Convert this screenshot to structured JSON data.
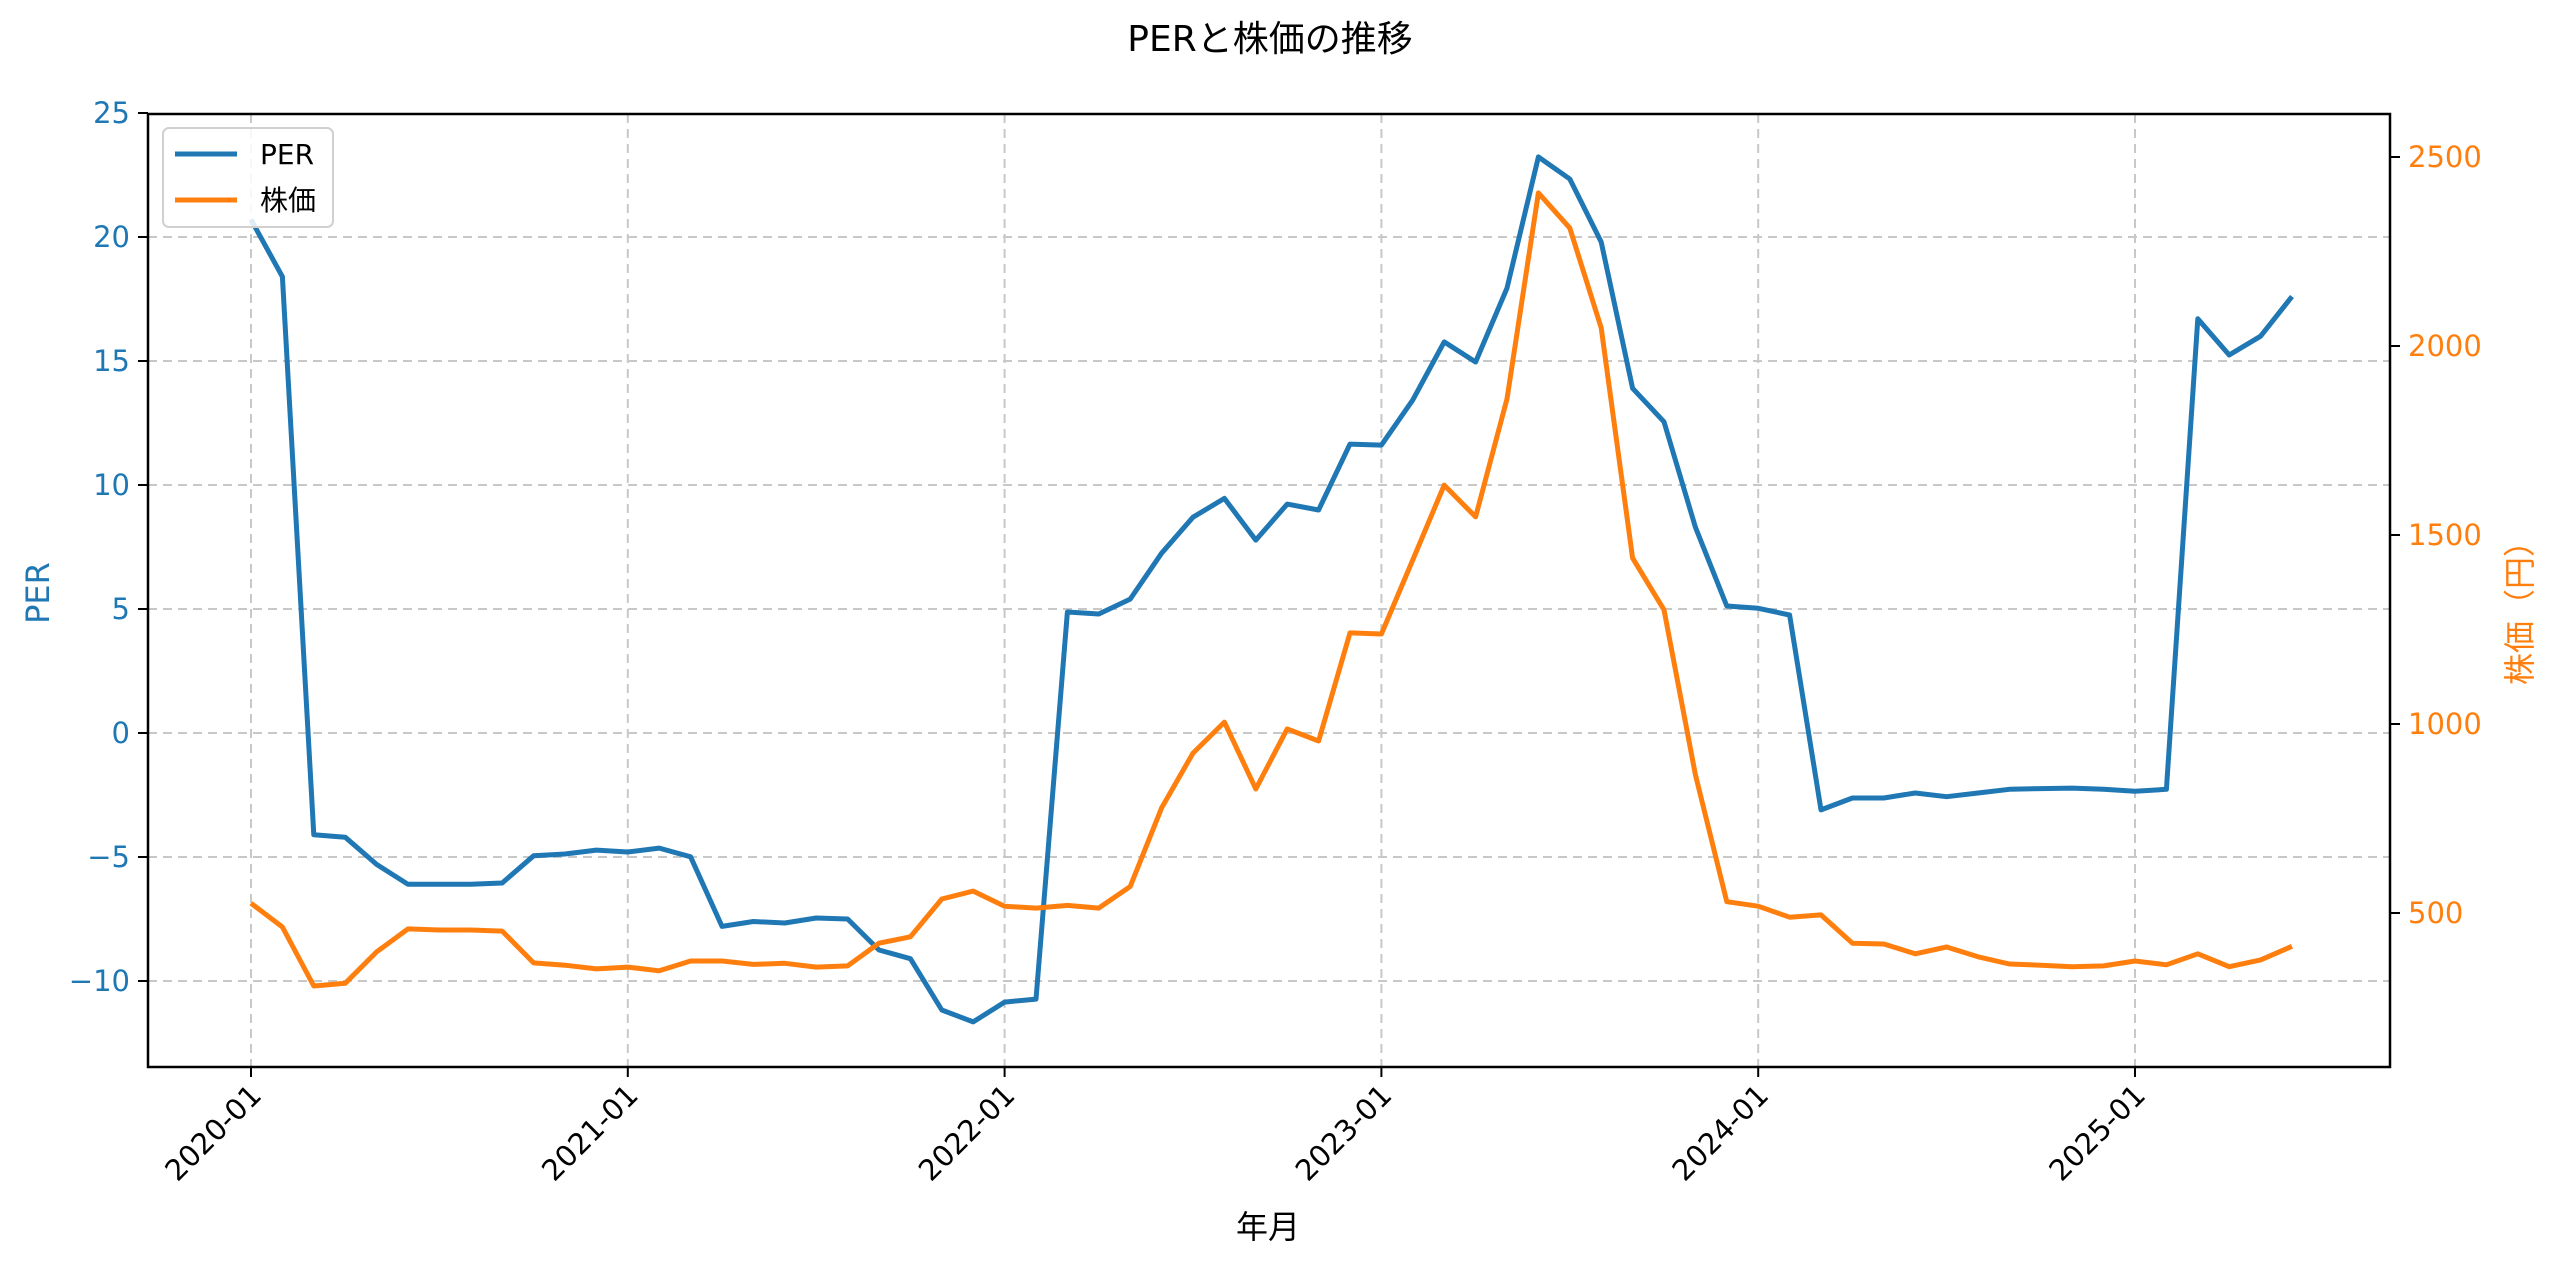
{
  "chart_data": {
    "type": "line",
    "title": "PERと株価の推移",
    "xlabel": "年月",
    "ylabel": "PER",
    "ylabel_right": "株価（円）",
    "x_tick_labels": [
      "2020-01",
      "2021-01",
      "2022-01",
      "2023-01",
      "2024-01",
      "2025-01"
    ],
    "y_ticks_left": [
      -10,
      -5,
      0,
      5,
      10,
      15,
      20,
      25
    ],
    "y_ticks_right": [
      500,
      1000,
      1500,
      2000,
      2500
    ],
    "ylim_left": [
      -13.4,
      25
    ],
    "ylim_right": [
      93,
      2614
    ],
    "grid": true,
    "legend_position": "upper left",
    "x": [
      "2020-01",
      "2020-02",
      "2020-03",
      "2020-04",
      "2020-05",
      "2020-06",
      "2020-07",
      "2020-08",
      "2020-09",
      "2020-10",
      "2020-11",
      "2020-12",
      "2021-01",
      "2021-02",
      "2021-03",
      "2021-04",
      "2021-05",
      "2021-06",
      "2021-07",
      "2021-08",
      "2021-09",
      "2021-10",
      "2021-11",
      "2021-12",
      "2022-01",
      "2022-02",
      "2022-03",
      "2022-04",
      "2022-05",
      "2022-06",
      "2022-07",
      "2022-08",
      "2022-09",
      "2022-10",
      "2022-11",
      "2022-12",
      "2023-01",
      "2023-02",
      "2023-03",
      "2023-04",
      "2023-05",
      "2023-06",
      "2023-07",
      "2023-08",
      "2023-09",
      "2023-10",
      "2023-11",
      "2023-12",
      "2024-01",
      "2024-02",
      "2024-03",
      "2024-04",
      "2024-05",
      "2024-06",
      "2024-07",
      "2024-08",
      "2024-09",
      "2024-10",
      "2024-11",
      "2024-12",
      "2025-01",
      "2025-02",
      "2025-03",
      "2025-04",
      "2025-05",
      "2025-06"
    ],
    "series": [
      {
        "name": "PER",
        "axis": "left",
        "color": "#1f77b4",
        "values": [
          20.7,
          18.4,
          -4.1,
          -4.2,
          -5.3,
          -6.1,
          -6.1,
          -6.1,
          -6.05,
          -4.95,
          -4.88,
          -4.72,
          -4.8,
          -4.64,
          -4.99,
          -7.8,
          -7.6,
          -7.66,
          -7.46,
          -7.5,
          -8.75,
          -9.1,
          -11.17,
          -11.65,
          -10.85,
          -10.73,
          4.88,
          4.8,
          5.4,
          7.25,
          8.7,
          9.46,
          7.78,
          9.23,
          8.99,
          11.65,
          11.61,
          13.43,
          15.77,
          14.96,
          17.94,
          23.23,
          22.34,
          19.8,
          13.9,
          12.55,
          8.3,
          5.12,
          5.03,
          4.76,
          -3.1,
          -2.62,
          -2.62,
          -2.42,
          -2.57,
          -2.42,
          -2.27,
          -2.24,
          -2.22,
          -2.27,
          -2.35,
          -2.27,
          16.7,
          15.24,
          16.0,
          17.6
        ]
      },
      {
        "name": "株価",
        "axis": "right",
        "color": "#ff7f0e",
        "values": [
          526,
          463,
          307,
          314,
          397,
          458,
          455,
          455,
          452,
          368,
          362,
          352,
          357,
          347,
          373,
          373,
          364,
          367,
          357,
          360,
          420,
          437,
          537,
          558,
          518,
          513,
          520,
          513,
          570,
          778,
          923,
          1005,
          828,
          987,
          955,
          1241,
          1238,
          1434,
          1632,
          1548,
          1860,
          2405,
          2312,
          2048,
          1439,
          1302,
          866,
          530,
          518,
          489,
          495,
          420,
          418,
          392,
          410,
          384,
          365,
          362,
          358,
          360,
          373,
          363,
          392,
          358,
          376,
          412
        ]
      }
    ]
  },
  "colors": {
    "left_axis": "#1f77b4",
    "right_axis": "#ff7f0e",
    "grid": "#c8c8c8",
    "frame": "#000000"
  }
}
